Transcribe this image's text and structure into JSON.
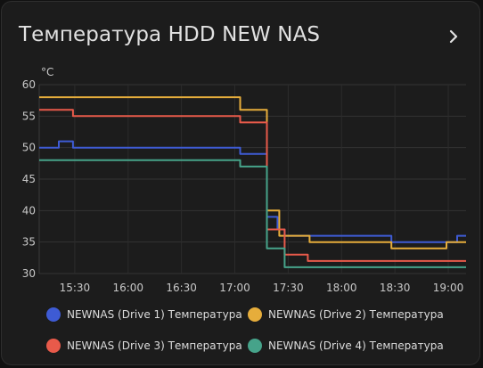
{
  "card": {
    "title": "Температура HDD NEW NAS"
  },
  "chart_data": {
    "type": "line",
    "step": true,
    "ylabel": "°C",
    "ylim": [
      30,
      60
    ],
    "yticks": [
      30,
      35,
      40,
      45,
      50,
      55,
      60
    ],
    "xlim": [
      "15:10",
      "19:10"
    ],
    "xticks": [
      "15:30",
      "16:00",
      "16:30",
      "17:00",
      "17:30",
      "18:00",
      "18:30",
      "19:00"
    ],
    "grid": true,
    "legend_position": "bottom",
    "series": [
      {
        "name": "NEWNAS (Drive 1) Температура",
        "color": "#3e5bd4",
        "points": [
          [
            "15:10",
            50
          ],
          [
            "15:21",
            51
          ],
          [
            "15:29",
            50
          ],
          [
            "17:03",
            49
          ],
          [
            "17:18",
            39
          ],
          [
            "17:24",
            37
          ],
          [
            "17:28",
            36
          ],
          [
            "18:28",
            35
          ],
          [
            "19:05",
            36
          ],
          [
            "19:10",
            36
          ]
        ]
      },
      {
        "name": "NEWNAS (Drive 2) Температура",
        "color": "#e6ad3b",
        "points": [
          [
            "15:10",
            58
          ],
          [
            "17:03",
            56
          ],
          [
            "17:18",
            40
          ],
          [
            "17:25",
            36
          ],
          [
            "17:42",
            35
          ],
          [
            "18:28",
            34
          ],
          [
            "18:59",
            35
          ],
          [
            "19:10",
            35
          ]
        ]
      },
      {
        "name": "NEWNAS (Drive 3) Температура",
        "color": "#e85a4a",
        "points": [
          [
            "15:10",
            56
          ],
          [
            "15:29",
            55
          ],
          [
            "17:03",
            54
          ],
          [
            "17:18",
            37
          ],
          [
            "17:28",
            33
          ],
          [
            "17:41",
            32
          ],
          [
            "19:10",
            32
          ]
        ]
      },
      {
        "name": "NEWNAS (Drive 4) Температура",
        "color": "#46a38a",
        "points": [
          [
            "15:10",
            48
          ],
          [
            "17:03",
            47
          ],
          [
            "17:18",
            34
          ],
          [
            "17:28",
            31
          ],
          [
            "19:10",
            31
          ]
        ]
      }
    ]
  }
}
